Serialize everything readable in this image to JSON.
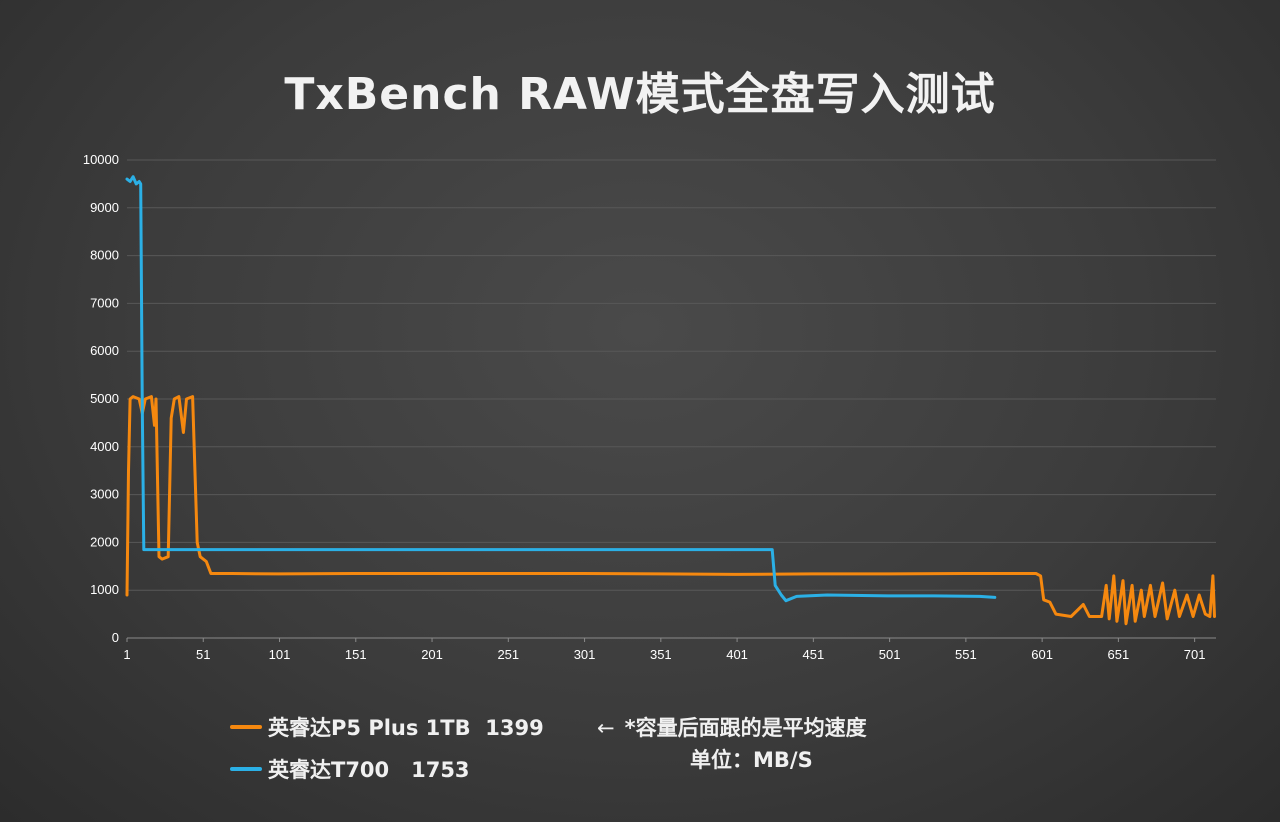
{
  "chart_data": {
    "type": "line",
    "title": "TxBench RAW模式全盘写入测试",
    "xlabel": "",
    "ylabel": "",
    "ylim": [
      0,
      10000
    ],
    "xlim": [
      1,
      715
    ],
    "yticks": [
      "0",
      "1000",
      "2000",
      "3000",
      "4000",
      "5000",
      "6000",
      "7000",
      "8000",
      "9000",
      "10000"
    ],
    "xticks": [
      "1",
      "51",
      "101",
      "151",
      "201",
      "251",
      "301",
      "351",
      "401",
      "451",
      "501",
      "551",
      "601",
      "651",
      "701"
    ],
    "grid": true,
    "legend_position": "bottom-left",
    "series": [
      {
        "name": "英睿达P5 Plus 1TB  1399",
        "color": "#f5880f",
        "points": [
          [
            1,
            900
          ],
          [
            2,
            3500
          ],
          [
            3,
            5000
          ],
          [
            5,
            5050
          ],
          [
            9,
            5000
          ],
          [
            11,
            4700
          ],
          [
            13,
            5000
          ],
          [
            17,
            5050
          ],
          [
            19,
            4450
          ],
          [
            20,
            5000
          ],
          [
            22,
            1700
          ],
          [
            24,
            1650
          ],
          [
            28,
            1700
          ],
          [
            30,
            4600
          ],
          [
            32,
            5000
          ],
          [
            35,
            5050
          ],
          [
            38,
            4300
          ],
          [
            40,
            5000
          ],
          [
            44,
            5050
          ],
          [
            47,
            2000
          ],
          [
            49,
            1700
          ],
          [
            53,
            1600
          ],
          [
            56,
            1350
          ],
          [
            70,
            1350
          ],
          [
            100,
            1340
          ],
          [
            150,
            1350
          ],
          [
            200,
            1350
          ],
          [
            250,
            1350
          ],
          [
            300,
            1350
          ],
          [
            350,
            1340
          ],
          [
            400,
            1330
          ],
          [
            450,
            1340
          ],
          [
            500,
            1340
          ],
          [
            550,
            1350
          ],
          [
            597,
            1350
          ],
          [
            600,
            1300
          ],
          [
            602,
            800
          ],
          [
            606,
            750
          ],
          [
            610,
            500
          ],
          [
            620,
            450
          ],
          [
            628,
            700
          ],
          [
            632,
            450
          ],
          [
            640,
            450
          ],
          [
            643,
            1100
          ],
          [
            645,
            400
          ],
          [
            648,
            1300
          ],
          [
            650,
            350
          ],
          [
            654,
            1200
          ],
          [
            656,
            300
          ],
          [
            660,
            1100
          ],
          [
            662,
            350
          ],
          [
            666,
            1000
          ],
          [
            668,
            450
          ],
          [
            672,
            1100
          ],
          [
            675,
            450
          ],
          [
            680,
            1150
          ],
          [
            683,
            400
          ],
          [
            688,
            1000
          ],
          [
            691,
            450
          ],
          [
            696,
            900
          ],
          [
            700,
            450
          ],
          [
            704,
            900
          ],
          [
            708,
            500
          ],
          [
            711,
            450
          ],
          [
            713,
            1300
          ],
          [
            714,
            450
          ]
        ]
      },
      {
        "name": "英睿达T700   1753",
        "color": "#2bb0e6",
        "points": [
          [
            1,
            9600
          ],
          [
            3,
            9550
          ],
          [
            5,
            9650
          ],
          [
            7,
            9500
          ],
          [
            9,
            9550
          ],
          [
            10,
            9500
          ],
          [
            11,
            4800
          ],
          [
            12,
            1850
          ],
          [
            40,
            1850
          ],
          [
            100,
            1850
          ],
          [
            150,
            1850
          ],
          [
            200,
            1850
          ],
          [
            250,
            1850
          ],
          [
            300,
            1850
          ],
          [
            350,
            1850
          ],
          [
            400,
            1850
          ],
          [
            424,
            1850
          ],
          [
            426,
            1100
          ],
          [
            430,
            900
          ],
          [
            433,
            780
          ],
          [
            440,
            870
          ],
          [
            460,
            900
          ],
          [
            500,
            880
          ],
          [
            530,
            880
          ],
          [
            560,
            870
          ],
          [
            570,
            850
          ]
        ]
      }
    ]
  },
  "note": {
    "arrow": "←",
    "text": "*容量后面跟的是平均速度",
    "unit": "单位：MB/S"
  }
}
